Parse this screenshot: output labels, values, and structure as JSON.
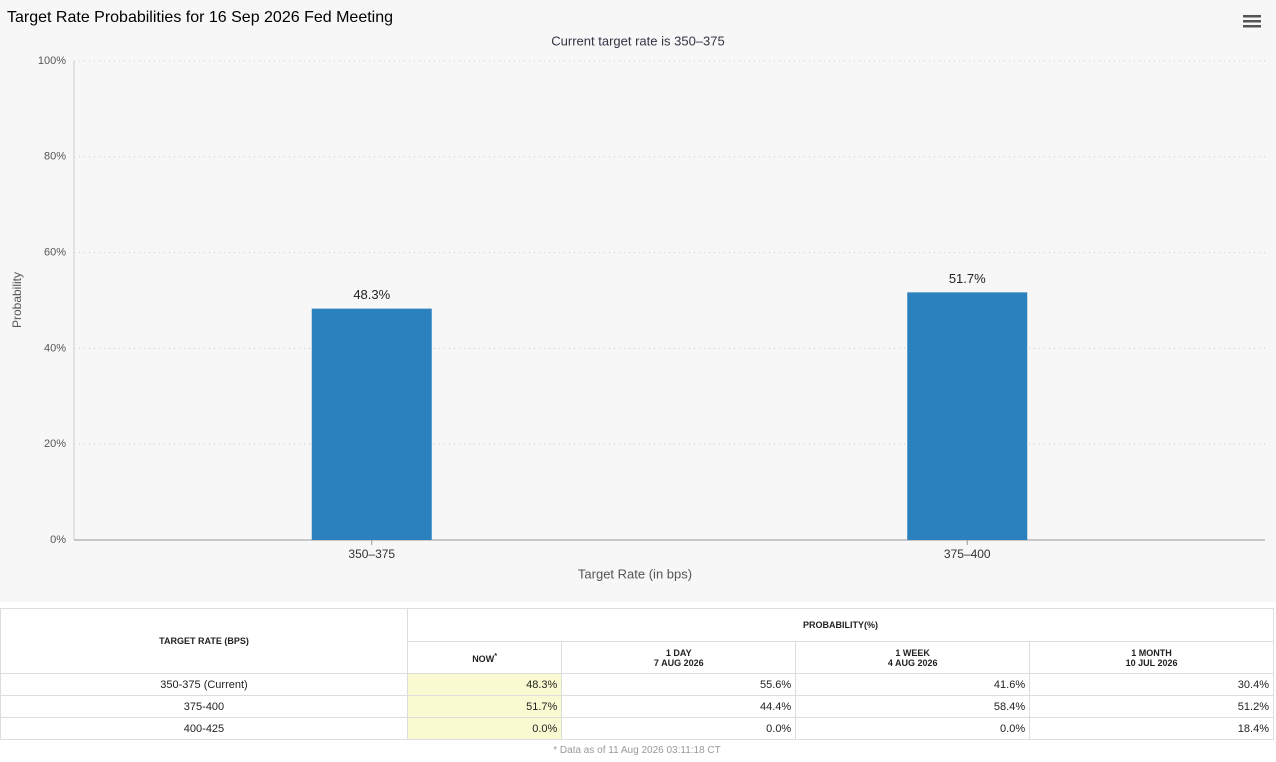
{
  "chart_data": {
    "type": "bar",
    "title": "Target Rate Probabilities for 16 Sep 2026 Fed Meeting",
    "subtitle": "Current target rate is 350–375",
    "x_label": "Target Rate (in bps)",
    "y_label": "Probability",
    "categories": [
      "350–375",
      "375–400"
    ],
    "values": [
      48.3,
      51.7
    ],
    "value_labels": [
      "48.3%",
      "51.7%"
    ],
    "color": "#2a81bd",
    "ylim": [
      0,
      100
    ],
    "yticks": [
      {
        "value": 0,
        "label": "0%"
      },
      {
        "value": 20,
        "label": "20%"
      },
      {
        "value": 40,
        "label": "40%"
      },
      {
        "value": 60,
        "label": "60%"
      },
      {
        "value": 80,
        "label": "80%"
      },
      {
        "value": 100,
        "label": "100%"
      }
    ],
    "grid": true
  },
  "table": {
    "row_header": "TARGET RATE (BPS)",
    "group_header": "PROBABILITY(%)",
    "columns": [
      {
        "label": "NOW",
        "mark": "*"
      },
      {
        "label": "1 DAY",
        "date": "7 AUG 2026"
      },
      {
        "label": "1 WEEK",
        "date": "4 AUG 2026"
      },
      {
        "label": "1 MONTH",
        "date": "10 JUL 2026"
      }
    ],
    "rows": [
      [
        "350-375 (Current)",
        "48.3%",
        "55.6%",
        "41.6%",
        "30.4%"
      ],
      [
        "375-400",
        "51.7%",
        "44.4%",
        "58.4%",
        "51.2%"
      ],
      [
        "400-425",
        "0.0%",
        "0.0%",
        "0.0%",
        "18.4%"
      ]
    ],
    "footnote": "* Data as of 11 Aug 2026 03:11:18 CT"
  }
}
